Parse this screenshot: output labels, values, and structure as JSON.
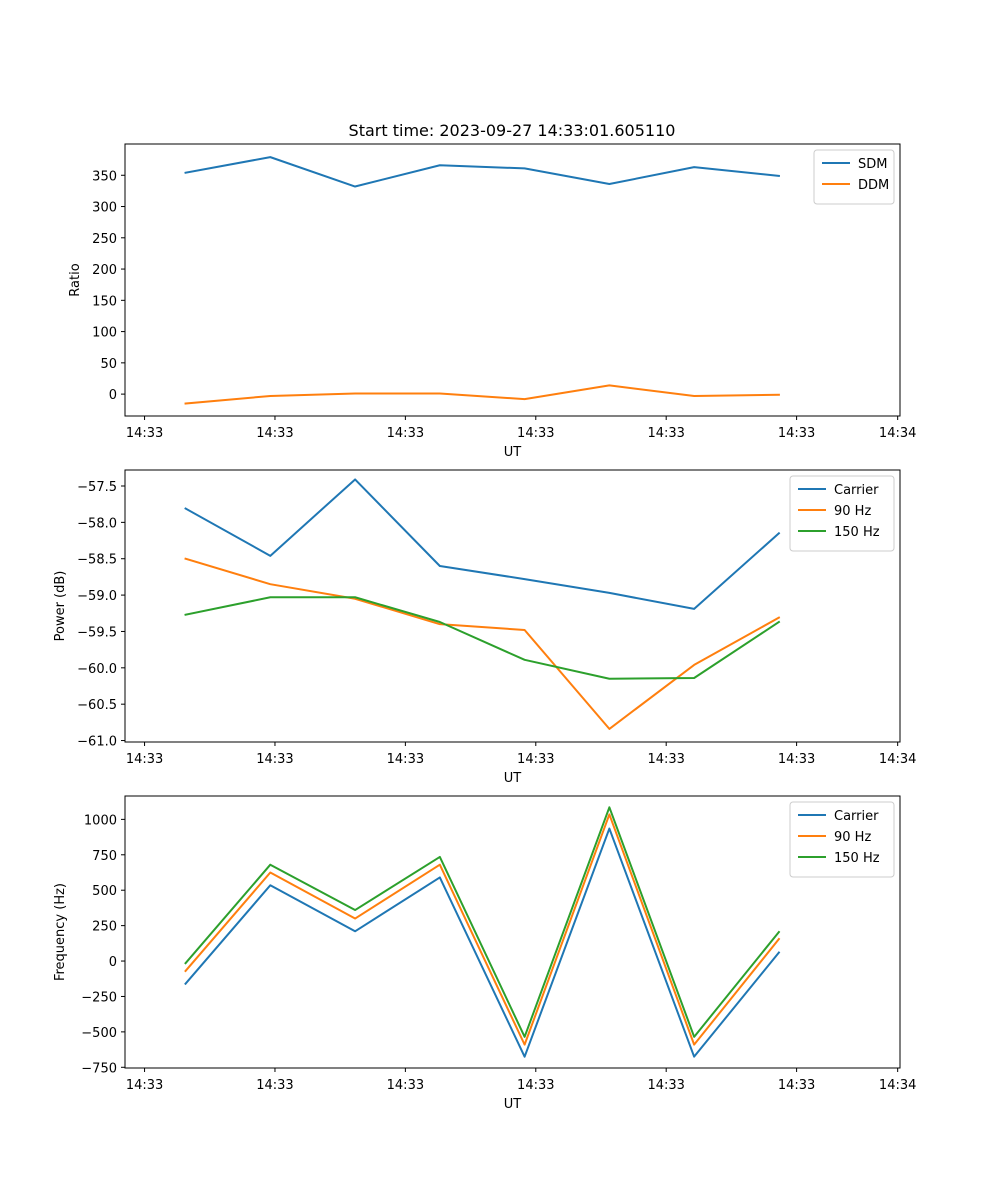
{
  "title": "Start time: 2023-09-27 14:33:01.605110",
  "colors": {
    "blue": "#1f77b4",
    "orange": "#ff7f0e",
    "green": "#2ca02c"
  },
  "chart_data": [
    {
      "type": "line",
      "title": "Start time: 2023-09-27 14:33:01.605110",
      "xlabel": "UT",
      "ylabel": "Ratio",
      "x": [
        1,
        2,
        3,
        4,
        5,
        6,
        7,
        8
      ],
      "xlim": [
        0.2857,
        9.4286
      ],
      "xticks": [
        0.5164,
        2.0549,
        3.5934,
        5.1319,
        6.6703,
        8.2088,
        9.4011
      ],
      "xtick_labels": [
        "14:33",
        "14:33",
        "14:33",
        "14:33",
        "14:33",
        "14:33",
        "14:34"
      ],
      "ylim": [
        -35,
        400
      ],
      "yticks": [
        0,
        50,
        100,
        150,
        200,
        250,
        300,
        350
      ],
      "ytick_labels": [
        "0",
        "50",
        "100",
        "150",
        "200",
        "250",
        "300",
        "350"
      ],
      "legend": "top-right",
      "grid": false,
      "series": [
        {
          "name": "SDM",
          "color": "#1f77b4",
          "values": [
            354,
            379,
            332,
            366,
            361,
            336,
            363,
            349
          ]
        },
        {
          "name": "DDM",
          "color": "#ff7f0e",
          "values": [
            -15,
            -3,
            1,
            1,
            -8,
            14,
            -3,
            -1
          ]
        }
      ]
    },
    {
      "type": "line",
      "xlabel": "UT",
      "ylabel": "Power (dB)",
      "x": [
        1,
        2,
        3,
        4,
        5,
        6,
        7,
        8
      ],
      "xlim": [
        0.2857,
        9.4286
      ],
      "xticks": [
        0.5164,
        2.0549,
        3.5934,
        5.1319,
        6.6703,
        8.2088,
        9.4011
      ],
      "xtick_labels": [
        "14:33",
        "14:33",
        "14:33",
        "14:33",
        "14:33",
        "14:33",
        "14:34"
      ],
      "ylim": [
        -61.02,
        -57.28
      ],
      "yticks": [
        -61.0,
        -60.5,
        -60.0,
        -59.5,
        -59.0,
        -58.5,
        -58.0,
        -57.5
      ],
      "ytick_labels": [
        "−61.0",
        "−60.5",
        "−60.0",
        "−59.5",
        "−59.0",
        "−58.5",
        "−58.0",
        "−57.5"
      ],
      "legend": "top-right",
      "grid": false,
      "series": [
        {
          "name": "Carrier",
          "color": "#1f77b4",
          "values": [
            -57.81,
            -58.46,
            -57.41,
            -58.6,
            -58.78,
            -58.97,
            -59.19,
            -58.15
          ]
        },
        {
          "name": "90 Hz",
          "color": "#ff7f0e",
          "values": [
            -58.5,
            -58.85,
            -59.05,
            -59.4,
            -59.48,
            -60.84,
            -59.96,
            -59.31
          ]
        },
        {
          "name": "150 Hz",
          "color": "#2ca02c",
          "values": [
            -59.27,
            -59.03,
            -59.03,
            -59.37,
            -59.89,
            -60.15,
            -60.14,
            -59.37
          ]
        }
      ]
    },
    {
      "type": "line",
      "xlabel": "UT",
      "ylabel": "Frequency (Hz)",
      "x": [
        1,
        2,
        3,
        4,
        5,
        6,
        7,
        8
      ],
      "xlim": [
        0.2857,
        9.4286
      ],
      "xticks": [
        0.5164,
        2.0549,
        3.5934,
        5.1319,
        6.6703,
        8.2088,
        9.4011
      ],
      "xtick_labels": [
        "14:33",
        "14:33",
        "14:33",
        "14:33",
        "14:33",
        "14:33",
        "14:34"
      ],
      "ylim": [
        -755,
        1165
      ],
      "yticks": [
        -750,
        -500,
        -250,
        0,
        250,
        500,
        750,
        1000
      ],
      "ytick_labels": [
        "−750",
        "−500",
        "−250",
        "0",
        "250",
        "500",
        "750",
        "1000"
      ],
      "legend": "top-right",
      "grid": false,
      "series": [
        {
          "name": "Carrier",
          "color": "#1f77b4",
          "values": [
            -160,
            535,
            210,
            590,
            -675,
            935,
            -675,
            60
          ]
        },
        {
          "name": "90 Hz",
          "color": "#ff7f0e",
          "values": [
            -70,
            625,
            300,
            680,
            -590,
            1035,
            -590,
            155
          ]
        },
        {
          "name": "150 Hz",
          "color": "#2ca02c",
          "values": [
            -15,
            680,
            360,
            735,
            -535,
            1085,
            -535,
            205
          ]
        }
      ]
    }
  ]
}
